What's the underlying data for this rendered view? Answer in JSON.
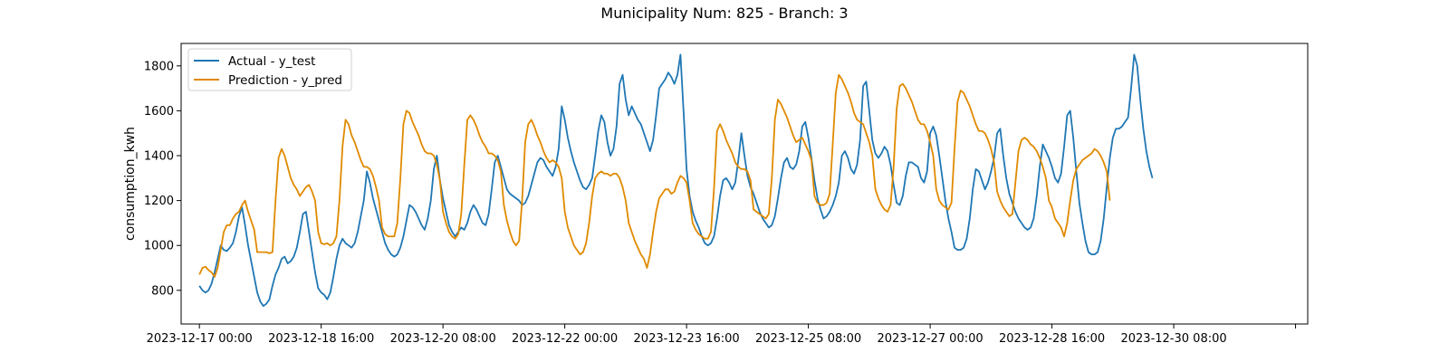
{
  "chart_data": {
    "type": "line",
    "title": "Municipality Num: 825 - Branch: 3",
    "xlabel": "",
    "ylabel": "consumption_kwh",
    "xlim": [
      "2023-12-16 18:00",
      "2024-01-01 04:00"
    ],
    "ylim": [
      650,
      1900
    ],
    "x_ticks": [
      "2023-12-17 00:00",
      "2023-12-18 16:00",
      "2023-12-20 08:00",
      "2023-12-22 00:00",
      "2023-12-23 16:00",
      "2023-12-25 08:00",
      "2023-12-27 00:00",
      "2023-12-28 16:00",
      "2023-12-30 08:00",
      ""
    ],
    "y_ticks": [
      800,
      1000,
      1200,
      1400,
      1600,
      1800
    ],
    "grid": false,
    "legend_position": "upper-left",
    "start": "2023-12-17 00:00",
    "interval": "1h",
    "series": [
      {
        "name": "Actual - y_test",
        "color": "#1f77b4",
        "values": [
          820,
          800,
          790,
          800,
          830,
          880,
          940,
          1000,
          980,
          975,
          990,
          1010,
          1060,
          1130,
          1170,
          1090,
          1000,
          930,
          860,
          790,
          750,
          730,
          740,
          760,
          820,
          870,
          900,
          940,
          950,
          920,
          930,
          950,
          990,
          1060,
          1140,
          1150,
          1060,
          970,
          880,
          810,
          790,
          780,
          760,
          790,
          860,
          940,
          1000,
          1030,
          1010,
          1000,
          990,
          1010,
          1060,
          1130,
          1200,
          1330,
          1280,
          1210,
          1160,
          1110,
          1060,
          1010,
          980,
          960,
          950,
          960,
          990,
          1040,
          1110,
          1180,
          1170,
          1150,
          1120,
          1090,
          1070,
          1120,
          1200,
          1340,
          1400,
          1290,
          1210,
          1150,
          1090,
          1060,
          1040,
          1060,
          1080,
          1070,
          1100,
          1150,
          1180,
          1160,
          1130,
          1100,
          1090,
          1140,
          1250,
          1370,
          1400,
          1350,
          1300,
          1250,
          1230,
          1220,
          1210,
          1200,
          1180,
          1190,
          1220,
          1270,
          1320,
          1370,
          1390,
          1380,
          1350,
          1330,
          1310,
          1350,
          1430,
          1620,
          1560,
          1480,
          1420,
          1370,
          1330,
          1290,
          1260,
          1250,
          1270,
          1300,
          1400,
          1510,
          1580,
          1550,
          1460,
          1400,
          1430,
          1530,
          1720,
          1760,
          1650,
          1580,
          1620,
          1590,
          1560,
          1540,
          1500,
          1460,
          1420,
          1470,
          1580,
          1700,
          1720,
          1740,
          1770,
          1750,
          1720,
          1760,
          1850,
          1600,
          1340,
          1220,
          1150,
          1110,
          1080,
          1040,
          1010,
          1000,
          1010,
          1040,
          1120,
          1220,
          1290,
          1300,
          1280,
          1250,
          1280,
          1380,
          1500,
          1400,
          1310,
          1260,
          1230,
          1190,
          1150,
          1120,
          1100,
          1080,
          1090,
          1130,
          1210,
          1300,
          1370,
          1390,
          1350,
          1340,
          1360,
          1420,
          1530,
          1550,
          1480,
          1390,
          1290,
          1210,
          1160,
          1120,
          1130,
          1150,
          1180,
          1220,
          1280,
          1400,
          1420,
          1390,
          1340,
          1320,
          1360,
          1470,
          1710,
          1730,
          1600,
          1470,
          1410,
          1390,
          1410,
          1440,
          1420,
          1360,
          1270,
          1190,
          1180,
          1220,
          1310,
          1370,
          1370,
          1360,
          1350,
          1300,
          1280,
          1330,
          1500,
          1530,
          1490,
          1400,
          1300,
          1200,
          1120,
          1060,
          990,
          980,
          980,
          990,
          1030,
          1120,
          1250,
          1340,
          1330,
          1290,
          1250,
          1280,
          1330,
          1390,
          1500,
          1520,
          1400,
          1300,
          1230,
          1190,
          1150,
          1120,
          1100,
          1080,
          1070,
          1080,
          1120,
          1220,
          1350,
          1450,
          1420,
          1390,
          1350,
          1300,
          1280,
          1320,
          1440,
          1580,
          1600,
          1480,
          1330,
          1190,
          1100,
          1020,
          970,
          960,
          960,
          970,
          1020,
          1120,
          1260,
          1390,
          1480,
          1520,
          1520,
          1530,
          1550,
          1570,
          1700,
          1850,
          1800,
          1650,
          1520,
          1420,
          1350,
          1300
        ]
      },
      {
        "name": "Prediction - y_pred",
        "color": "#e08a00",
        "values": [
          870,
          900,
          905,
          890,
          880,
          860,
          900,
          980,
          1060,
          1090,
          1090,
          1120,
          1140,
          1150,
          1180,
          1200,
          1150,
          1110,
          1070,
          970,
          970,
          970,
          970,
          965,
          970,
          1200,
          1390,
          1430,
          1400,
          1350,
          1300,
          1270,
          1250,
          1220,
          1240,
          1260,
          1270,
          1240,
          1200,
          1060,
          1010,
          1005,
          1010,
          1000,
          1010,
          1040,
          1200,
          1440,
          1560,
          1540,
          1490,
          1460,
          1420,
          1380,
          1350,
          1350,
          1340,
          1310,
          1260,
          1200,
          1080,
          1050,
          1040,
          1040,
          1040,
          1100,
          1300,
          1540,
          1600,
          1590,
          1550,
          1520,
          1490,
          1450,
          1420,
          1410,
          1410,
          1400,
          1360,
          1290,
          1150,
          1100,
          1060,
          1040,
          1030,
          1050,
          1140,
          1360,
          1560,
          1580,
          1560,
          1530,
          1490,
          1460,
          1440,
          1410,
          1410,
          1400,
          1380,
          1330,
          1180,
          1110,
          1060,
          1020,
          1000,
          1020,
          1200,
          1460,
          1540,
          1560,
          1530,
          1490,
          1460,
          1420,
          1390,
          1370,
          1380,
          1370,
          1350,
          1300,
          1150,
          1080,
          1040,
          1000,
          980,
          960,
          970,
          1010,
          1100,
          1220,
          1300,
          1320,
          1330,
          1320,
          1320,
          1310,
          1320,
          1320,
          1300,
          1260,
          1200,
          1100,
          1060,
          1020,
          990,
          960,
          940,
          900,
          960,
          1060,
          1150,
          1210,
          1230,
          1250,
          1250,
          1230,
          1240,
          1280,
          1310,
          1300,
          1280,
          1200,
          1100,
          1070,
          1050,
          1040,
          1030,
          1030,
          1060,
          1250,
          1510,
          1540,
          1510,
          1470,
          1440,
          1410,
          1370,
          1350,
          1340,
          1340,
          1330,
          1290,
          1160,
          1150,
          1140,
          1130,
          1120,
          1140,
          1300,
          1560,
          1650,
          1630,
          1600,
          1570,
          1530,
          1490,
          1460,
          1470,
          1480,
          1450,
          1420,
          1380,
          1220,
          1190,
          1180,
          1180,
          1190,
          1230,
          1450,
          1680,
          1760,
          1740,
          1710,
          1680,
          1640,
          1590,
          1560,
          1550,
          1540,
          1500,
          1460,
          1400,
          1250,
          1210,
          1180,
          1160,
          1150,
          1180,
          1350,
          1610,
          1710,
          1720,
          1700,
          1670,
          1640,
          1600,
          1560,
          1540,
          1540,
          1510,
          1460,
          1400,
          1250,
          1200,
          1180,
          1170,
          1160,
          1190,
          1430,
          1640,
          1690,
          1680,
          1650,
          1620,
          1580,
          1540,
          1510,
          1510,
          1500,
          1470,
          1430,
          1370,
          1240,
          1200,
          1170,
          1150,
          1130,
          1140,
          1280,
          1420,
          1470,
          1480,
          1470,
          1450,
          1440,
          1420,
          1390,
          1350,
          1300,
          1200,
          1170,
          1120,
          1100,
          1080,
          1040,
          1100,
          1200,
          1290,
          1340,
          1360,
          1380,
          1390,
          1400,
          1410,
          1430,
          1420,
          1400,
          1370,
          1330,
          1200
        ]
      }
    ]
  }
}
